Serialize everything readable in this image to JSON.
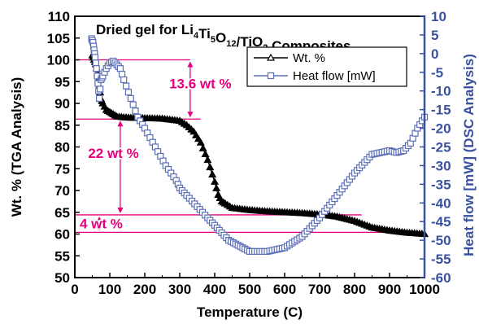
{
  "chart_data": {
    "type": "line",
    "title": "Dried gel for Li4Ti5O12/TiO2 Composites",
    "title_parts": [
      {
        "t": "Dried gel for Li",
        "sub": false
      },
      {
        "t": "4",
        "sub": true
      },
      {
        "t": "Ti",
        "sub": false
      },
      {
        "t": "5",
        "sub": true
      },
      {
        "t": "O",
        "sub": false
      },
      {
        "t": "12",
        "sub": true
      },
      {
        "t": "/TiO",
        "sub": false
      },
      {
        "t": "2",
        "sub": true
      },
      {
        "t": " Composites",
        "sub": false
      }
    ],
    "xlabel": "Temperature (C)",
    "ylabel_left": "Wt. % (TGA Analysis)",
    "ylabel_right": "Heat flow [mW] (DSC Analysis)",
    "xlim": [
      0,
      1000
    ],
    "ylim_left": [
      50,
      110
    ],
    "ylim_right": [
      -60,
      10
    ],
    "x_ticks": [
      0,
      100,
      200,
      300,
      400,
      500,
      600,
      700,
      800,
      900,
      1000
    ],
    "y_left_ticks": [
      50,
      55,
      60,
      65,
      70,
      75,
      80,
      85,
      90,
      95,
      100,
      105,
      110
    ],
    "y_right_ticks": [
      10,
      5,
      0,
      -5,
      -10,
      -15,
      -20,
      -25,
      -30,
      -35,
      -40,
      -45,
      -50,
      -55,
      -60
    ],
    "grid": false,
    "legend_position": "top-right",
    "colors": {
      "axis_left": "#000000",
      "axis_right": "#3a52a0",
      "series_wt": "#000000",
      "series_heat": "#5b6fb8",
      "annotation": "#e6007e"
    },
    "series": [
      {
        "name": "Wt. %",
        "axis": "left",
        "marker": "triangle",
        "color": "#000000",
        "x": [
          50,
          55,
          60,
          65,
          70,
          75,
          80,
          90,
          100,
          110,
          120,
          140,
          160,
          200,
          250,
          300,
          320,
          340,
          360,
          380,
          400,
          410,
          420,
          430,
          450,
          500,
          550,
          600,
          650,
          700,
          750,
          800,
          850,
          900,
          950,
          1000
        ],
        "y": [
          101,
          100,
          99,
          97,
          94,
          91,
          90,
          88.5,
          88,
          87.5,
          87,
          86.8,
          86.7,
          86.6,
          86.5,
          86,
          85,
          83.5,
          81,
          77,
          72,
          69,
          67.5,
          67,
          66,
          65.5,
          65.2,
          65,
          64.8,
          64.5,
          64,
          63,
          61.5,
          60.8,
          60.3,
          60
        ]
      },
      {
        "name": "Heat flow [mW]",
        "axis": "right",
        "marker": "square",
        "color": "#5b6fb8",
        "x": [
          48,
          52,
          55,
          58,
          62,
          66,
          70,
          75,
          80,
          90,
          100,
          110,
          120,
          130,
          140,
          160,
          180,
          200,
          230,
          260,
          290,
          300,
          320,
          350,
          380,
          400,
          420,
          440,
          460,
          480,
          500,
          550,
          600,
          650,
          700,
          750,
          800,
          850,
          900,
          920,
          940,
          960,
          980,
          1000
        ],
        "y": [
          4,
          3,
          1,
          -1,
          -4,
          -8,
          -12,
          -7,
          -6,
          -4,
          -2.5,
          -2,
          -3,
          -4,
          -7,
          -12,
          -17,
          -20,
          -25,
          -30,
          -34,
          -36,
          -38,
          -41,
          -44,
          -46,
          -48,
          -50,
          -51,
          -52,
          -53,
          -53,
          -52,
          -49,
          -44,
          -38,
          -32,
          -27,
          -26,
          -26.5,
          -26,
          -24,
          -20,
          -17
        ]
      }
    ],
    "annotations": [
      {
        "text": "13.6 wt %",
        "from": 100,
        "to": 86.4,
        "x": 330,
        "label_pos": "right"
      },
      {
        "text": "22 wt %",
        "from": 86.4,
        "to": 64.4,
        "x": 130,
        "label_pos": "left"
      },
      {
        "text": "4 wt %",
        "from": 64.4,
        "to": 60.4,
        "x": 70,
        "label_pos": "left"
      }
    ],
    "reference_lines": [
      {
        "y": 100,
        "x_from": 0,
        "x_to": 330
      },
      {
        "y": 86.4,
        "x_from": 0,
        "x_to": 360
      },
      {
        "y": 64.4,
        "x_from": 0,
        "x_to": 820
      },
      {
        "y": 60.4,
        "x_from": 0,
        "x_to": 1000
      }
    ]
  }
}
